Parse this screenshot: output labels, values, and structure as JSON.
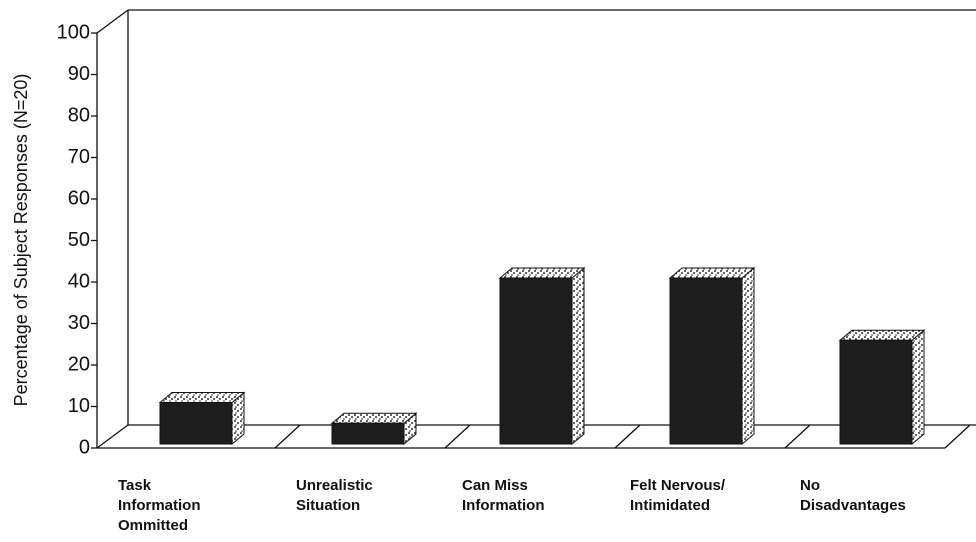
{
  "chart_data": {
    "type": "bar",
    "y_label": "Percentage of Subject Responses (N=20)",
    "categories": [
      "Task\nInformation\nOmmitted",
      "Unrealistic\nSituation",
      "Can Miss\nInformation",
      "Felt Nervous/\nIntimidated",
      "No\nDisadvantages"
    ],
    "values": [
      10,
      5,
      40,
      40,
      25
    ],
    "color": "#1e1e1e",
    "ylim": [
      0,
      100
    ],
    "yticks": [
      0,
      10,
      20,
      30,
      40,
      50,
      60,
      70,
      80,
      90,
      100
    ]
  }
}
